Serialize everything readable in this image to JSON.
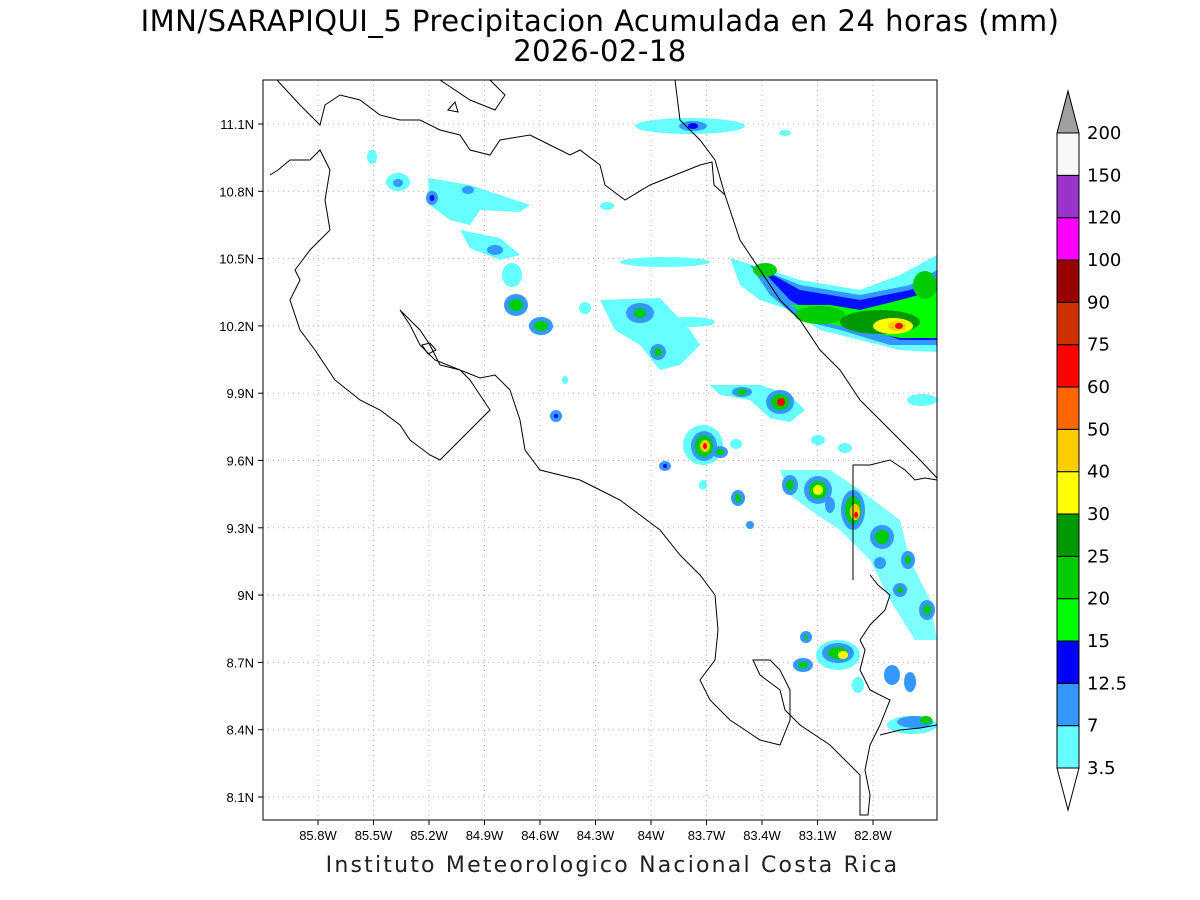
{
  "title": {
    "line1": "IMN/SARAPIQUI_5 Precipitacion Acumulada en 24 horas (mm)",
    "line2": "2026-02-18"
  },
  "footer": "Instituto Meteorologico Nacional Costa Rica",
  "map": {
    "lon_range": [
      -86.0,
      -82.55
    ],
    "lat_range": [
      8.0,
      11.3
    ],
    "lon_ticks": [
      "85.8W",
      "85.5W",
      "85.2W",
      "84.9W",
      "84.6W",
      "84.3W",
      "84W",
      "83.7W",
      "83.4W",
      "83.1W",
      "82.8W"
    ],
    "lat_ticks": [
      "11.1N",
      "10.8N",
      "10.5N",
      "10.2N",
      "9.9N",
      "9.6N",
      "9.3N",
      "9N",
      "8.7N",
      "8.4N",
      "8.1N"
    ],
    "grid": "dotted"
  },
  "colorbar": {
    "levels": [
      "3.5",
      "7",
      "12.5",
      "15",
      "20",
      "25",
      "30",
      "40",
      "50",
      "60",
      "75",
      "90",
      "100",
      "120",
      "150",
      "200"
    ],
    "colors": [
      "#66ffff",
      "#3399ff",
      "#0000ff",
      "#00ff00",
      "#00cc00",
      "#009900",
      "#ffff00",
      "#ffcc00",
      "#ff6600",
      "#ff0000",
      "#cc3300",
      "#990000",
      "#ff00ff",
      "#9933cc",
      "#f8f8f8",
      "#a0a0a0"
    ]
  }
}
